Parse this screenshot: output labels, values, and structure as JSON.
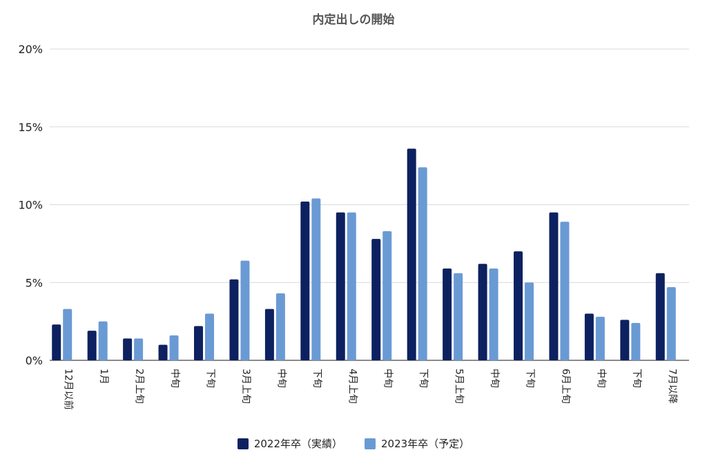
{
  "chart_data": {
    "type": "bar",
    "title": "内定出しの開始",
    "categories": [
      "12月以前",
      "1月",
      "2月上旬",
      "中旬",
      "下旬",
      "3月上旬",
      "中旬",
      "下旬",
      "4月上旬",
      "中旬",
      "下旬",
      "5月上旬",
      "中旬",
      "下旬",
      "6月上旬",
      "中旬",
      "下旬",
      "7月以降"
    ],
    "series": [
      {
        "name": "2022年卒（実績）",
        "color": "#0d2160",
        "values": [
          2.3,
          1.9,
          1.4,
          1.0,
          2.2,
          5.2,
          3.3,
          10.2,
          9.5,
          7.8,
          13.6,
          5.9,
          6.2,
          7.0,
          9.5,
          3.0,
          2.6,
          5.6
        ]
      },
      {
        "name": "2023年卒（予定）",
        "color": "#6a9ad4",
        "values": [
          3.3,
          2.5,
          1.4,
          1.6,
          3.0,
          6.4,
          4.3,
          10.4,
          9.5,
          8.3,
          12.4,
          5.6,
          5.9,
          5.0,
          8.9,
          2.8,
          2.4,
          4.7
        ]
      }
    ],
    "yticks": [
      "0%",
      "5%",
      "10%",
      "15%",
      "20%"
    ],
    "ylim": [
      0,
      20
    ],
    "ylabel": "",
    "xlabel": "",
    "grid": true,
    "legend_position": "bottom"
  }
}
